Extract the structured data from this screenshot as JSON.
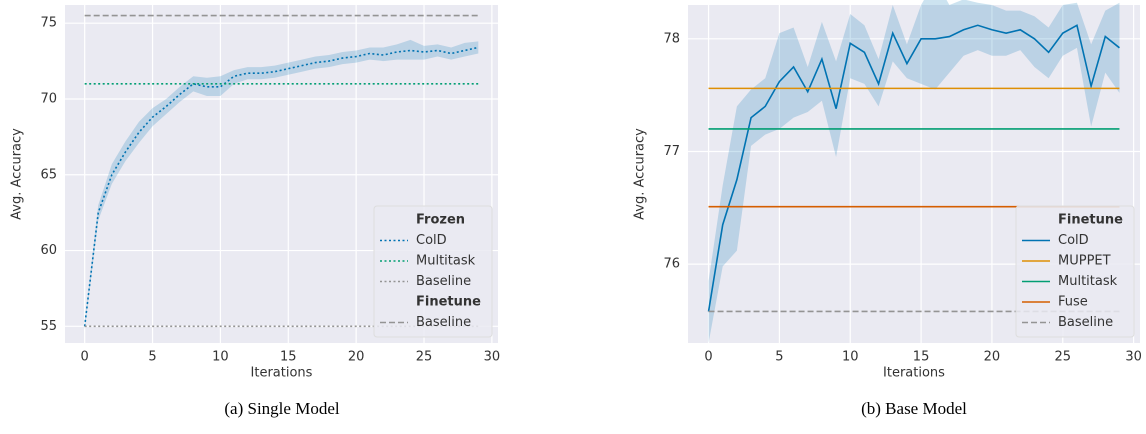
{
  "chart_data": [
    {
      "type": "line",
      "caption": "(a) Single Model",
      "xlabel": "Iterations",
      "ylabel": "Avg. Accuracy",
      "xlim": [
        -1.45,
        30.45
      ],
      "xticks": [
        0,
        5,
        10,
        15,
        20,
        25,
        30
      ],
      "ylim": [
        53.9,
        76.2
      ],
      "yticks": [
        55,
        60,
        65,
        70,
        75
      ],
      "grid": true,
      "legend": "lower right",
      "series_groups": [
        {
          "title": "Frozen",
          "series": [
            {
              "name": "ColD",
              "color": "#0173b2",
              "linestyle": "dotted",
              "x": [
                0,
                1,
                2,
                3,
                4,
                5,
                6,
                7,
                8,
                9,
                10,
                11,
                12,
                13,
                14,
                15,
                16,
                17,
                18,
                19,
                20,
                21,
                22,
                23,
                24,
                25,
                26,
                27,
                28,
                29
              ],
              "values": [
                55,
                62.5,
                65,
                66.5,
                67.8,
                68.8,
                69.5,
                70.3,
                71,
                70.8,
                70.8,
                71.5,
                71.7,
                71.7,
                71.8,
                72,
                72.2,
                72.4,
                72.5,
                72.7,
                72.8,
                73,
                72.9,
                73.1,
                73.2,
                73.1,
                73.2,
                73,
                73.2,
                73.4
              ],
              "lower": [
                54.8,
                62,
                64.4,
                65.9,
                67.1,
                68.2,
                69,
                69.8,
                70.5,
                70.2,
                70.2,
                71,
                71.3,
                71.3,
                71.4,
                71.6,
                71.8,
                72,
                72.1,
                72.3,
                72.4,
                72.6,
                72.5,
                72.6,
                72.6,
                72.6,
                72.8,
                72.6,
                72.8,
                73
              ],
              "upper": [
                55.2,
                63,
                65.7,
                67.2,
                68.5,
                69.4,
                70,
                70.8,
                71.5,
                71.4,
                71.5,
                71.9,
                72.1,
                72.1,
                72.2,
                72.4,
                72.6,
                72.8,
                72.9,
                73.1,
                73.2,
                73.4,
                73.4,
                73.6,
                73.9,
                73.5,
                73.6,
                73.4,
                73.7,
                73.8
              ]
            },
            {
              "name": "Multitask",
              "color": "#029e73",
              "linestyle": "dotted",
              "x": [
                0,
                29
              ],
              "values": [
                71,
                71
              ]
            },
            {
              "name": "Baseline",
              "color": "#949494",
              "linestyle": "dotted",
              "x": [
                0,
                29
              ],
              "values": [
                55,
                55
              ]
            }
          ]
        },
        {
          "title": "Finetune",
          "series": [
            {
              "name": "Baseline",
              "color": "#949494",
              "linestyle": "dashed",
              "x": [
                0,
                29
              ],
              "values": [
                75.5,
                75.5
              ]
            }
          ]
        }
      ]
    },
    {
      "type": "line",
      "caption": "(b) Base Model",
      "xlabel": "Iterations",
      "ylabel": "Avg. Accuracy",
      "xlim": [
        -1.45,
        30.45
      ],
      "xticks": [
        0,
        5,
        10,
        15,
        20,
        25,
        30
      ],
      "ylim": [
        75.3,
        78.3
      ],
      "yticks": [
        76,
        77,
        78
      ],
      "grid": true,
      "legend": "lower right",
      "series_groups": [
        {
          "title": "Finetune",
          "series": [
            {
              "name": "ColD",
              "color": "#0173b2",
              "linestyle": "solid",
              "x": [
                0,
                1,
                2,
                3,
                4,
                5,
                6,
                7,
                8,
                9,
                10,
                11,
                12,
                13,
                14,
                15,
                16,
                17,
                18,
                19,
                20,
                21,
                22,
                23,
                24,
                25,
                26,
                27,
                28,
                29
              ],
              "values": [
                75.58,
                76.35,
                76.75,
                77.3,
                77.4,
                77.62,
                77.75,
                77.53,
                77.82,
                77.38,
                77.96,
                77.88,
                77.6,
                78.05,
                77.78,
                78,
                78,
                78.02,
                78.08,
                78.12,
                78.08,
                78.05,
                78.08,
                78,
                77.88,
                78.05,
                78.12,
                77.58,
                78.02,
                77.92
              ],
              "lower": [
                75.3,
                75.98,
                76.12,
                77.05,
                77.15,
                77.2,
                77.3,
                77.35,
                77.45,
                76.95,
                77.65,
                77.6,
                77.4,
                77.8,
                77.65,
                77.6,
                77.55,
                77.7,
                77.85,
                77.9,
                77.85,
                77.85,
                77.9,
                77.75,
                77.65,
                77.85,
                77.92,
                77.22,
                77.7,
                77.52
              ],
              "upper": [
                75.85,
                76.7,
                77.4,
                77.55,
                77.65,
                78.05,
                78.1,
                77.75,
                78.15,
                77.8,
                78.22,
                78.12,
                77.82,
                78.3,
                77.95,
                78.3,
                78.52,
                78.3,
                78.35,
                78.32,
                78.3,
                78.25,
                78.25,
                78.2,
                78.1,
                78.3,
                78.32,
                77.95,
                78.25,
                78.32
              ]
            },
            {
              "name": "MUPPET",
              "color": "#de8f05",
              "linestyle": "solid",
              "x": [
                0,
                29
              ],
              "values": [
                77.56,
                77.56
              ]
            },
            {
              "name": "Multitask",
              "color": "#029e73",
              "linestyle": "solid",
              "x": [
                0,
                29
              ],
              "values": [
                77.2,
                77.2
              ]
            },
            {
              "name": "Fuse",
              "color": "#d55e00",
              "linestyle": "solid",
              "x": [
                0,
                29
              ],
              "values": [
                76.51,
                76.51
              ]
            },
            {
              "name": "Baseline",
              "color": "#949494",
              "linestyle": "dashed",
              "x": [
                0,
                29
              ],
              "values": [
                75.58,
                75.58
              ]
            }
          ]
        }
      ]
    }
  ]
}
